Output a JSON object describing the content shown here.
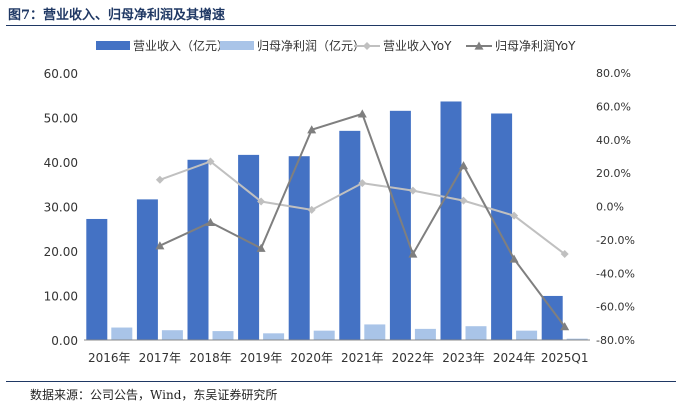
{
  "figure": {
    "title": "图7：营业收入、归母净利润及其增速",
    "source": "数据来源：公司公告，Wind，东吴证券研究所"
  },
  "colors": {
    "revenue_bar": "#4472c4",
    "profit_bar": "#a9c4e8",
    "revenue_yoy_line": "#c0c0c0",
    "profit_yoy_line": "#7f7f7f",
    "rule": "#1f3864"
  },
  "chart_data": {
    "type": "bar",
    "categories": [
      "2016年",
      "2017年",
      "2018年",
      "2019年",
      "2020年",
      "2021年",
      "2022年",
      "2023年",
      "2024年",
      "2025Q1"
    ],
    "series": [
      {
        "name": "营业收入（亿元）",
        "kind": "bar",
        "axis": "left",
        "values": [
          27.2,
          31.6,
          40.5,
          41.6,
          41.3,
          47.0,
          51.5,
          53.6,
          50.9,
          9.9
        ]
      },
      {
        "name": "归母净利润（亿元）",
        "kind": "bar",
        "axis": "left",
        "values": [
          2.8,
          2.2,
          2.0,
          1.5,
          2.1,
          3.5,
          2.5,
          3.1,
          2.1,
          0.3
        ]
      },
      {
        "name": "营业收入YoY",
        "kind": "line",
        "axis": "right",
        "marker": "diamond",
        "values": [
          null,
          16.0,
          27.0,
          3.0,
          -2.0,
          14.0,
          9.5,
          3.5,
          -5.5,
          -28.5
        ]
      },
      {
        "name": "归母净利润YoY",
        "kind": "line",
        "axis": "right",
        "marker": "triangle",
        "values": [
          null,
          -23.5,
          -9.5,
          -25.0,
          46.0,
          55.5,
          -28.5,
          24.5,
          -31.5,
          -72.0
        ]
      }
    ],
    "y_left": {
      "min": 0,
      "max": 60,
      "ticks": [
        "0.00",
        "10.00",
        "20.00",
        "30.00",
        "40.00",
        "50.00",
        "60.00"
      ]
    },
    "y_right": {
      "min": -80,
      "max": 80,
      "ticks": [
        "-80.0%",
        "-60.0%",
        "-40.0%",
        "-20.0%",
        "0.0%",
        "20.0%",
        "40.0%",
        "60.0%",
        "80.0%"
      ]
    },
    "legend_position": "top",
    "grid": false
  }
}
